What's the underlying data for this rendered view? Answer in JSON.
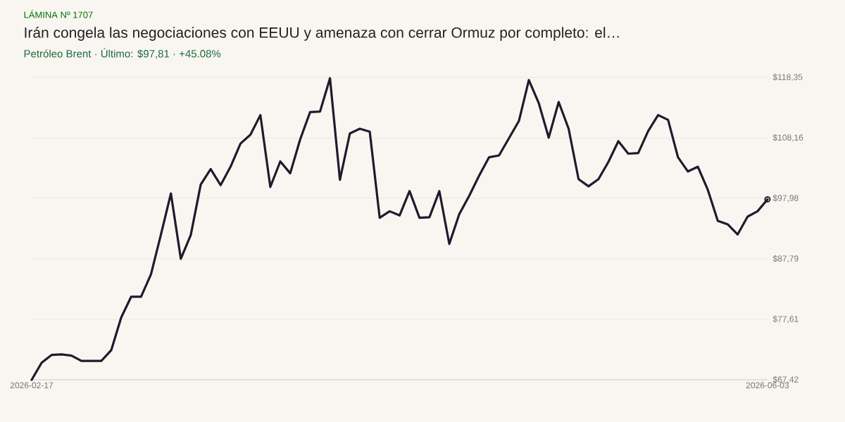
{
  "chart_data": {
    "type": "line",
    "title": "Irán congela las negociaciones con EEUU y amenaza con cerrar Ormuz por completo: el…",
    "subtitle": "Petróleo Brent · Último: $97,81 · +45.08%",
    "annotations": [
      "LÁMINA Nº 1707"
    ],
    "categories": [
      "2026-02-17",
      null,
      null,
      null,
      null,
      null,
      null,
      null,
      null,
      null,
      null,
      null,
      null,
      null,
      null,
      null,
      null,
      null,
      null,
      null,
      null,
      null,
      null,
      null,
      null,
      null,
      null,
      null,
      null,
      null,
      null,
      null,
      null,
      null,
      null,
      null,
      null,
      null,
      null,
      null,
      null,
      null,
      null,
      null,
      null,
      null,
      null,
      null,
      null,
      null,
      null,
      null,
      null,
      null,
      null,
      null,
      null,
      null,
      null,
      null,
      null,
      null,
      null,
      null,
      null,
      null,
      null,
      null,
      null,
      null,
      null,
      null,
      null,
      null,
      "2026-06-03"
    ],
    "series": [
      {
        "color": "#1c1c2e",
        "values": [
          67.42,
          70.3,
          71.6,
          71.7,
          71.5,
          70.6,
          70.6,
          70.6,
          72.4,
          77.9,
          81.4,
          81.4,
          85.2,
          91.9,
          98.8,
          87.8,
          91.8,
          100.3,
          102.9,
          100.2,
          103.3,
          107.2,
          108.7,
          112.0,
          99.9,
          104.2,
          102.2,
          107.9,
          112.5,
          112.6,
          118.2,
          101.1,
          108.9,
          109.7,
          109.2,
          94.7,
          95.8,
          95.1,
          99.2,
          94.7,
          94.8,
          99.2,
          90.3,
          95.3,
          98.4,
          101.8,
          104.9,
          105.2,
          108.1,
          111.0,
          117.9,
          114.0,
          108.2,
          114.2,
          109.7,
          101.2,
          100.0,
          101.2,
          104.1,
          107.6,
          105.5,
          105.6,
          109.3,
          112.0,
          111.2,
          104.9,
          102.5,
          103.3,
          99.4,
          94.2,
          93.6,
          91.9,
          94.9,
          95.8,
          97.81
        ]
      },
      {
        "type": "scatter",
        "marker": "circle",
        "color": "#1c1c2e",
        "values": [
          null,
          null,
          null,
          null,
          null,
          null,
          null,
          null,
          null,
          null,
          null,
          null,
          null,
          null,
          null,
          null,
          null,
          null,
          null,
          null,
          null,
          null,
          null,
          null,
          null,
          null,
          null,
          null,
          null,
          null,
          null,
          null,
          null,
          null,
          null,
          null,
          null,
          null,
          null,
          null,
          null,
          null,
          null,
          null,
          null,
          null,
          null,
          null,
          null,
          null,
          null,
          null,
          null,
          null,
          null,
          null,
          null,
          null,
          null,
          null,
          null,
          null,
          null,
          null,
          null,
          null,
          null,
          null,
          null,
          null,
          null,
          null,
          null,
          null,
          97.81
        ]
      }
    ],
    "ylim": [
      67.42,
      118.35
    ],
    "yticks": [
      {
        "value": 67.42,
        "label": "$67,42"
      },
      {
        "value": 77.61,
        "label": "$77,61"
      },
      {
        "value": 87.79,
        "label": "$87,79"
      },
      {
        "value": 97.98,
        "label": "$97,98"
      },
      {
        "value": 108.16,
        "label": "$108,16"
      },
      {
        "value": 118.35,
        "label": "$118,35"
      }
    ],
    "grid": "y"
  }
}
